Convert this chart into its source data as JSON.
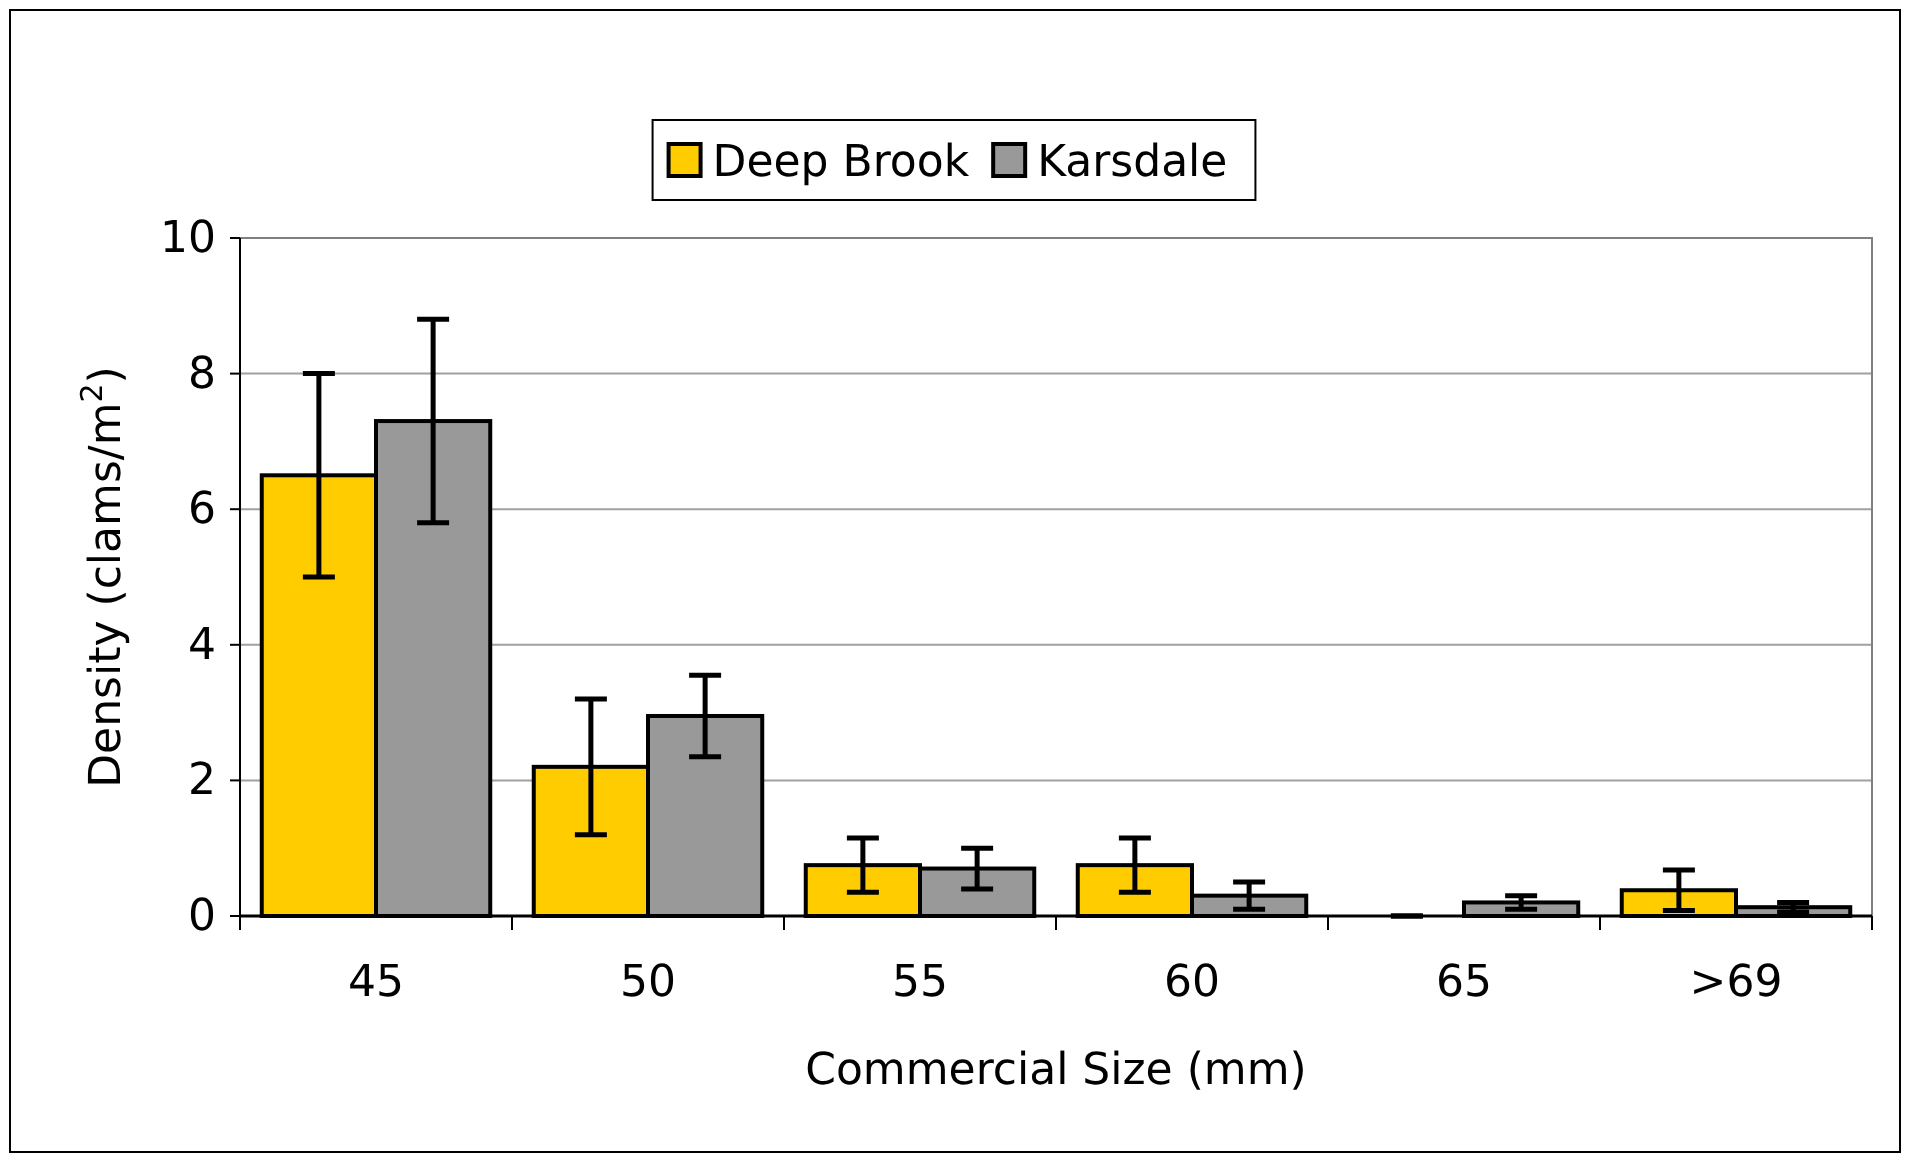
{
  "chart_data": {
    "type": "bar",
    "xlabel": "Commercial Size (mm)",
    "ylabel": "Density (clams/m$^{2}$)",
    "categories": [
      "45",
      "50",
      "55",
      "60",
      "65",
      ">69"
    ],
    "series": [
      {
        "name": "Deep Brook",
        "color": "#ffcc00",
        "values": [
          6.5,
          2.2,
          0.75,
          0.75,
          0,
          0.38
        ],
        "errors": [
          1.5,
          1.0,
          0.4,
          0.4,
          0,
          0.3
        ]
      },
      {
        "name": "Karsdale",
        "color": "#999999",
        "values": [
          7.3,
          2.95,
          0.7,
          0.3,
          0.2,
          0.13
        ],
        "errors": [
          1.5,
          0.6,
          0.3,
          0.2,
          0.1,
          0.07
        ]
      }
    ],
    "ylim": [
      0,
      10
    ],
    "yticks": [
      0,
      2,
      4,
      6,
      8,
      10
    ],
    "grid": "y",
    "legend": "top"
  }
}
